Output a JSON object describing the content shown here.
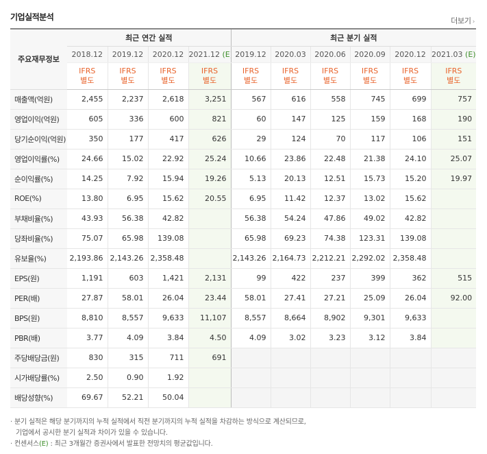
{
  "header": {
    "title": "기업실적분석",
    "more_label": "더보기",
    "more_chevron": "›"
  },
  "columns": {
    "row_header": "주요재무정보",
    "annual_group": "최근 연간 실적",
    "quarter_group": "최근 분기 실적",
    "annual_periods": [
      "2018.12",
      "2019.12",
      "2020.12",
      "2021.12"
    ],
    "annual_estimate_mark": "(E)",
    "quarter_periods": [
      "2019.12",
      "2020.03",
      "2020.06",
      "2020.09",
      "2020.12",
      "2021.03"
    ],
    "quarter_estimate_mark": "(E)",
    "accounting_line1": "IFRS",
    "accounting_line2": "별도"
  },
  "rows": [
    {
      "label": "매출액(억원)",
      "annual": [
        "2,455",
        "2,237",
        "2,618",
        "3,251"
      ],
      "quarter": [
        "567",
        "616",
        "558",
        "745",
        "699",
        "757"
      ]
    },
    {
      "label": "영업이익(억원)",
      "annual": [
        "605",
        "336",
        "600",
        "821"
      ],
      "quarter": [
        "60",
        "147",
        "125",
        "159",
        "168",
        "190"
      ]
    },
    {
      "label": "당기순이익(억원)",
      "annual": [
        "350",
        "177",
        "417",
        "626"
      ],
      "quarter": [
        "29",
        "124",
        "70",
        "117",
        "106",
        "151"
      ]
    },
    {
      "label": "영업이익률(%)",
      "annual": [
        "24.66",
        "15.02",
        "22.92",
        "25.24"
      ],
      "quarter": [
        "10.66",
        "23.86",
        "22.48",
        "21.38",
        "24.10",
        "25.07"
      ]
    },
    {
      "label": "순이익률(%)",
      "annual": [
        "14.25",
        "7.92",
        "15.94",
        "19.26"
      ],
      "quarter": [
        "5.13",
        "20.13",
        "12.51",
        "15.73",
        "15.20",
        "19.97"
      ]
    },
    {
      "label": "ROE(%)",
      "annual": [
        "13.80",
        "6.95",
        "15.62",
        "20.55"
      ],
      "quarter": [
        "6.95",
        "11.42",
        "12.37",
        "13.02",
        "15.62",
        ""
      ]
    },
    {
      "label": "부채비율(%)",
      "annual": [
        "43.93",
        "56.38",
        "42.82",
        ""
      ],
      "quarter": [
        "56.38",
        "54.24",
        "47.86",
        "49.02",
        "42.82",
        ""
      ]
    },
    {
      "label": "당좌비율(%)",
      "annual": [
        "75.07",
        "65.98",
        "139.08",
        ""
      ],
      "quarter": [
        "65.98",
        "69.23",
        "74.38",
        "123.31",
        "139.08",
        ""
      ]
    },
    {
      "label": "유보율(%)",
      "annual": [
        "2,193.86",
        "2,143.26",
        "2,358.48",
        ""
      ],
      "quarter": [
        "2,143.26",
        "2,164.73",
        "2,212.21",
        "2,292.02",
        "2,358.48",
        ""
      ]
    },
    {
      "label": "EPS(원)",
      "annual": [
        "1,191",
        "603",
        "1,421",
        "2,131"
      ],
      "quarter": [
        "99",
        "422",
        "237",
        "399",
        "362",
        "515"
      ]
    },
    {
      "label": "PER(배)",
      "annual": [
        "27.87",
        "58.01",
        "26.04",
        "23.44"
      ],
      "quarter": [
        "58.01",
        "27.41",
        "27.21",
        "25.09",
        "26.04",
        "92.00"
      ]
    },
    {
      "label": "BPS(원)",
      "annual": [
        "8,810",
        "8,557",
        "9,633",
        "11,107"
      ],
      "quarter": [
        "8,557",
        "8,664",
        "8,902",
        "9,301",
        "9,633",
        ""
      ]
    },
    {
      "label": "PBR(배)",
      "annual": [
        "3.77",
        "4.09",
        "3.84",
        "4.50"
      ],
      "quarter": [
        "4.09",
        "3.02",
        "3.23",
        "3.12",
        "3.84",
        ""
      ]
    },
    {
      "label": "주당배당금(원)",
      "annual": [
        "830",
        "315",
        "711",
        "691"
      ],
      "quarter": [
        "",
        "",
        "",
        "",
        "",
        ""
      ]
    },
    {
      "label": "시가배당률(%)",
      "annual": [
        "2.50",
        "0.90",
        "1.92",
        ""
      ],
      "quarter": [
        "",
        "",
        "",
        "",
        "",
        ""
      ]
    },
    {
      "label": "배당성향(%)",
      "annual": [
        "69.67",
        "52.21",
        "50.04",
        ""
      ],
      "quarter": [
        "",
        "",
        "",
        "",
        "",
        ""
      ]
    }
  ],
  "notes": {
    "line1": "· 분기 실적은 해당 분기까지의 누적 실적에서 직전 분기까지의 누적 실적을 차감하는 방식으로 계산되므로,",
    "line2": "  기업에서 공시한 분기 실적과 차이가 있을 수 있습니다.",
    "line3_prefix": "· 컨센서스",
    "line3_mark": "(E)",
    "line3_suffix": " : 최근 3개월간 증권사에서 발표한 전망치의 평균값입니다."
  },
  "colors": {
    "estimate_text": "#3c8d29",
    "ifrs_text": "#e8622a",
    "estimate_bg": "#f4f9ef"
  }
}
